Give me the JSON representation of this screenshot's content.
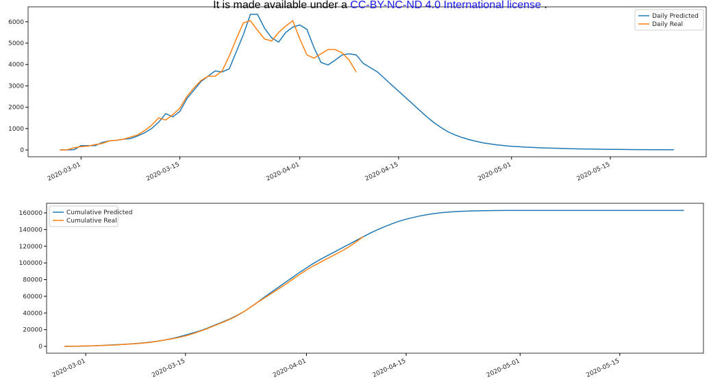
{
  "header": {
    "text": "It is made available under a ",
    "link": "CC-BY-NC-ND 4.0 International license",
    "tail": " ."
  },
  "chart_data": [
    {
      "type": "line",
      "legend": "upper right",
      "grid": false,
      "x": [
        "2020-02-27",
        "2020-02-28",
        "2020-02-29",
        "2020-03-01",
        "2020-03-02",
        "2020-03-03",
        "2020-03-04",
        "2020-03-05",
        "2020-03-06",
        "2020-03-07",
        "2020-03-08",
        "2020-03-09",
        "2020-03-10",
        "2020-03-11",
        "2020-03-12",
        "2020-03-13",
        "2020-03-14",
        "2020-03-15",
        "2020-03-16",
        "2020-03-17",
        "2020-03-18",
        "2020-03-19",
        "2020-03-20",
        "2020-03-21",
        "2020-03-22",
        "2020-03-23",
        "2020-03-24",
        "2020-03-25",
        "2020-03-26",
        "2020-03-27",
        "2020-03-28",
        "2020-03-29",
        "2020-03-30",
        "2020-03-31",
        "2020-04-01",
        "2020-04-02",
        "2020-04-03",
        "2020-04-04",
        "2020-04-05",
        "2020-04-06",
        "2020-04-07",
        "2020-04-08",
        "2020-04-09",
        "2020-04-10",
        "2020-04-11",
        "2020-04-12",
        "2020-04-13",
        "2020-04-14",
        "2020-04-15",
        "2020-04-16",
        "2020-04-17",
        "2020-04-18",
        "2020-04-19",
        "2020-04-20",
        "2020-04-21",
        "2020-04-22",
        "2020-04-23",
        "2020-04-24",
        "2020-04-25",
        "2020-04-26",
        "2020-04-27",
        "2020-04-28",
        "2020-04-29",
        "2020-04-30",
        "2020-05-01",
        "2020-05-02",
        "2020-05-03",
        "2020-05-04",
        "2020-05-05",
        "2020-05-06",
        "2020-05-07",
        "2020-05-08",
        "2020-05-09",
        "2020-05-10",
        "2020-05-11",
        "2020-05-12",
        "2020-05-13",
        "2020-05-14",
        "2020-05-15",
        "2020-05-16",
        "2020-05-17",
        "2020-05-18",
        "2020-05-19",
        "2020-05-20",
        "2020-05-21",
        "2020-05-22",
        "2020-05-23",
        "2020-05-24"
      ],
      "series": [
        {
          "name": "Daily Predicted",
          "color": "#1f77b4",
          "values": [
            0,
            0,
            10,
            200,
            200,
            200,
            350,
            420,
            450,
            500,
            530,
            650,
            800,
            1000,
            1300,
            1700,
            1550,
            1800,
            2400,
            2800,
            3200,
            3450,
            3700,
            3650,
            3800,
            4600,
            5400,
            6350,
            6350,
            5700,
            5250,
            5050,
            5500,
            5750,
            5850,
            5650,
            4800,
            4100,
            3980,
            4200,
            4450,
            4500,
            4450,
            4050,
            3850,
            3650,
            3350,
            3050,
            2750,
            2450,
            2150,
            1850,
            1550,
            1280,
            1050,
            850,
            700,
            580,
            480,
            400,
            330,
            280,
            230,
            200,
            170,
            150,
            130,
            115,
            100,
            90,
            80,
            70,
            60,
            52,
            45,
            40,
            35,
            30,
            26,
            22,
            19,
            16,
            14,
            12,
            10,
            9,
            8,
            7
          ]
        },
        {
          "name": "Daily Real",
          "color": "#ff7f0e",
          "values": [
            0,
            0,
            100,
            150,
            180,
            250,
            300,
            420,
            450,
            500,
            600,
            700,
            900,
            1150,
            1500,
            1400,
            1650,
            1950,
            2500,
            2900,
            3250,
            3450,
            3450,
            3700,
            4400,
            5200,
            5950,
            6050,
            5600,
            5200,
            5100,
            5500,
            5800,
            6050,
            5200,
            4450,
            4300,
            4500,
            4700,
            4700,
            4550,
            4200,
            3650,
            null,
            null,
            null,
            null,
            null,
            null,
            null,
            null,
            null,
            null,
            null,
            null,
            null,
            null,
            null,
            null,
            null,
            null,
            null,
            null,
            null,
            null,
            null,
            null,
            null,
            null,
            null,
            null,
            null,
            null,
            null,
            null,
            null,
            null,
            null,
            null,
            null,
            null,
            null,
            null,
            null,
            null,
            null,
            null,
            null
          ]
        }
      ],
      "xlim": [
        "2020-02-22T12:00:00Z",
        "2020-05-28T14:00:00Z"
      ],
      "xticks": [
        "2020-03-01",
        "2020-03-15",
        "2020-04-01",
        "2020-04-15",
        "2020-05-01",
        "2020-05-15"
      ],
      "ylim": [
        -320,
        6700
      ],
      "yticks": [
        0,
        1000,
        2000,
        3000,
        4000,
        5000,
        6000
      ]
    },
    {
      "type": "line",
      "legend": "upper left",
      "grid": false,
      "x": [
        "2020-02-27",
        "2020-02-28",
        "2020-02-29",
        "2020-03-01",
        "2020-03-02",
        "2020-03-03",
        "2020-03-04",
        "2020-03-05",
        "2020-03-06",
        "2020-03-07",
        "2020-03-08",
        "2020-03-09",
        "2020-03-10",
        "2020-03-11",
        "2020-03-12",
        "2020-03-13",
        "2020-03-14",
        "2020-03-15",
        "2020-03-16",
        "2020-03-17",
        "2020-03-18",
        "2020-03-19",
        "2020-03-20",
        "2020-03-21",
        "2020-03-22",
        "2020-03-23",
        "2020-03-24",
        "2020-03-25",
        "2020-03-26",
        "2020-03-27",
        "2020-03-28",
        "2020-03-29",
        "2020-03-30",
        "2020-03-31",
        "2020-04-01",
        "2020-04-02",
        "2020-04-03",
        "2020-04-04",
        "2020-04-05",
        "2020-04-06",
        "2020-04-07",
        "2020-04-08",
        "2020-04-09",
        "2020-04-10",
        "2020-04-11",
        "2020-04-12",
        "2020-04-13",
        "2020-04-14",
        "2020-04-15",
        "2020-04-16",
        "2020-04-17",
        "2020-04-18",
        "2020-04-19",
        "2020-04-20",
        "2020-04-21",
        "2020-04-22",
        "2020-04-23",
        "2020-04-24",
        "2020-04-25",
        "2020-04-26",
        "2020-04-27",
        "2020-04-28",
        "2020-04-29",
        "2020-04-30",
        "2020-05-01",
        "2020-05-02",
        "2020-05-03",
        "2020-05-04",
        "2020-05-05",
        "2020-05-06",
        "2020-05-07",
        "2020-05-08",
        "2020-05-09",
        "2020-05-10",
        "2020-05-11",
        "2020-05-12",
        "2020-05-13",
        "2020-05-14",
        "2020-05-15",
        "2020-05-16",
        "2020-05-17",
        "2020-05-18",
        "2020-05-19",
        "2020-05-20",
        "2020-05-21",
        "2020-05-22",
        "2020-05-23",
        "2020-05-24"
      ],
      "series": [
        {
          "name": "Cumulative Predicted",
          "color": "#1f77b4",
          "values": [
            0,
            100,
            200,
            400,
            700,
            1000,
            1400,
            1800,
            2300,
            2800,
            3400,
            4100,
            5000,
            6100,
            7500,
            9200,
            11200,
            13500,
            16000,
            18500,
            21500,
            25000,
            28500,
            32000,
            36000,
            40500,
            46000,
            52000,
            58500,
            64500,
            70500,
            76500,
            82500,
            88500,
            94000,
            99500,
            104500,
            109000,
            113500,
            118000,
            122500,
            127000,
            131500,
            136000,
            140000,
            143500,
            147000,
            150000,
            152500,
            154500,
            156500,
            158000,
            159300,
            160300,
            161000,
            161600,
            162000,
            162300,
            162500,
            162700,
            162800,
            162900,
            162950,
            163000,
            163000,
            163000,
            163000,
            163000,
            163000,
            163000,
            163000,
            163000,
            163000,
            163000,
            163000,
            163000,
            163000,
            163000,
            163000,
            163000,
            163000,
            163000,
            163000,
            163000,
            163000,
            163000,
            163000,
            163000
          ]
        },
        {
          "name": "Cumulative Real",
          "color": "#ff7f0e",
          "values": [
            0,
            100,
            300,
            500,
            700,
            900,
            1200,
            1600,
            2100,
            2600,
            3200,
            3900,
            4800,
            6000,
            7500,
            8900,
            10500,
            12500,
            15000,
            18000,
            21000,
            24500,
            28000,
            31500,
            35500,
            40500,
            46000,
            52000,
            57500,
            63000,
            68500,
            74000,
            80000,
            86000,
            91500,
            96500,
            101000,
            105500,
            110000,
            114500,
            119500,
            125500,
            131500,
            null,
            null,
            null,
            null,
            null,
            null,
            null,
            null,
            null,
            null,
            null,
            null,
            null,
            null,
            null,
            null,
            null,
            null,
            null,
            null,
            null,
            null,
            null,
            null,
            null,
            null,
            null,
            null,
            null,
            null,
            null,
            null,
            null,
            null,
            null,
            null,
            null,
            null,
            null,
            null,
            null,
            null,
            null,
            null,
            null
          ]
        }
      ],
      "xlim": [
        "2020-02-24T12:00:00Z",
        "2020-05-26T18:00:00Z"
      ],
      "xticks": [
        "2020-03-01",
        "2020-03-15",
        "2020-04-01",
        "2020-04-15",
        "2020-05-01",
        "2020-05-15"
      ],
      "ylim": [
        -8200,
        171500
      ],
      "yticks": [
        0,
        20000,
        40000,
        60000,
        80000,
        100000,
        120000,
        140000,
        160000
      ]
    }
  ]
}
